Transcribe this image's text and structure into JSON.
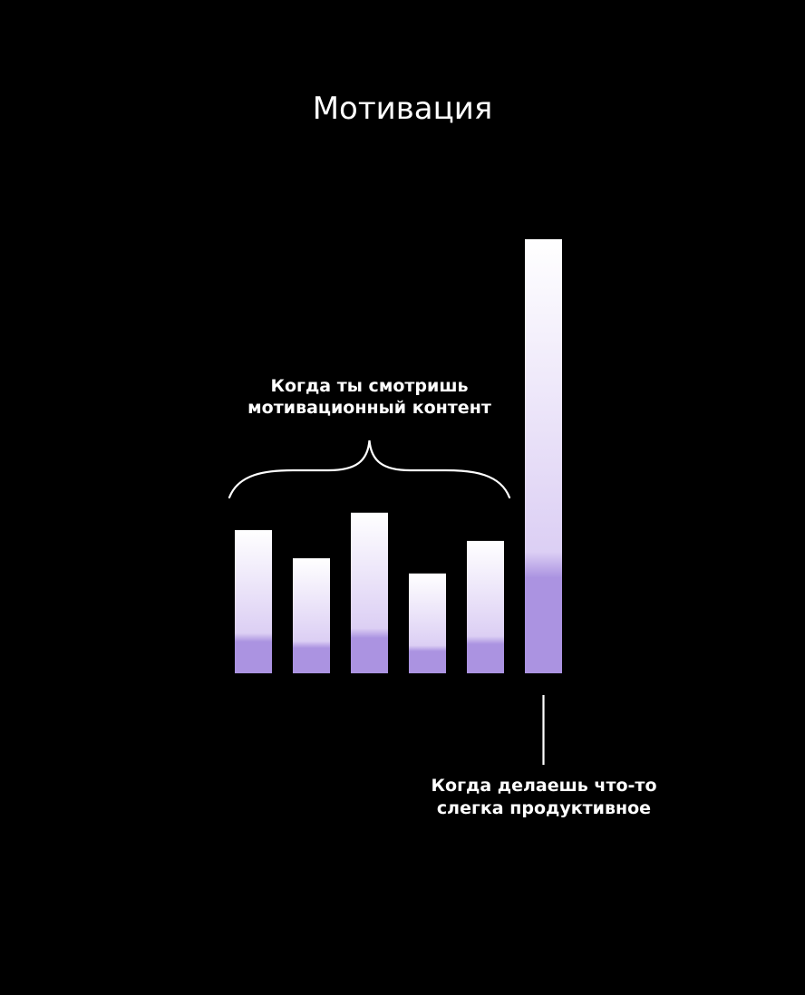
{
  "chart_data": {
    "type": "bar",
    "title": "Мотивация",
    "xlabel": "",
    "ylabel": "",
    "categories": [
      "",
      "",
      "",
      "",
      "",
      ""
    ],
    "values": [
      33,
      26.5,
      37,
      23,
      30.5,
      100
    ],
    "ylim": [
      0,
      100
    ],
    "grid": false,
    "legend": "none",
    "annotations": [
      {
        "lines": [
          "Когда ты смотришь",
          "мотивационный контент"
        ],
        "target_bars": [
          0,
          1,
          2,
          3,
          4
        ],
        "marker": "brace"
      },
      {
        "lines": [
          "Когда делаешь что-то",
          "слегка продуктивное"
        ],
        "target_bars": [
          5
        ],
        "marker": "line"
      }
    ]
  },
  "colors": {
    "background": "#000000",
    "text": "#ffffff",
    "bar_top": "#ffffff",
    "bar_bottom": "#ab93e1"
  }
}
